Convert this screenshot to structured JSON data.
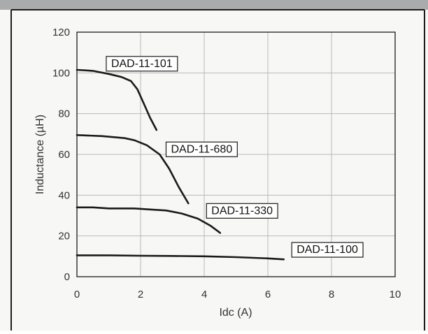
{
  "colors": {
    "background": "#f7f7f5",
    "top_band": "#a9abad",
    "frame": "#1c1c1c",
    "grid": "#b8b8b8",
    "curve": "#1a1a1a",
    "text": "#333333"
  },
  "chart_data": {
    "type": "line",
    "title": "",
    "xlabel": "Idc (A)",
    "ylabel": "Inductance (µH)",
    "xlim": [
      0,
      10
    ],
    "ylim": [
      0,
      120
    ],
    "x_ticks": [
      0,
      2,
      4,
      6,
      8,
      10
    ],
    "y_ticks": [
      0,
      20,
      40,
      60,
      80,
      100,
      120
    ],
    "x_tick_labels": [
      "0",
      "2",
      "4",
      "6",
      "8",
      "10"
    ],
    "y_tick_labels": [
      "0",
      "20",
      "40",
      "60",
      "80",
      "100",
      "120"
    ],
    "grid": true,
    "legend": "inline callout labels",
    "series": [
      {
        "name": "DAD-11-101",
        "x": [
          0,
          0.5,
          1.0,
          1.4,
          1.7,
          1.9,
          2.1,
          2.3,
          2.5
        ],
        "y": [
          101.5,
          101,
          99.5,
          98,
          96,
          92,
          85,
          78,
          72
        ]
      },
      {
        "name": "DAD-11-680",
        "x": [
          0,
          0.8,
          1.5,
          1.8,
          2.2,
          2.6,
          2.9,
          3.2,
          3.5
        ],
        "y": [
          69.5,
          69,
          68,
          67,
          64.5,
          60,
          53,
          44,
          36
        ]
      },
      {
        "name": "DAD-11-330",
        "x": [
          0,
          0.5,
          1.0,
          1.8,
          2.3,
          2.8,
          3.3,
          3.8,
          4.2,
          4.5
        ],
        "y": [
          34,
          34,
          33.5,
          33.5,
          33,
          32.5,
          31,
          28.5,
          25,
          21.5
        ]
      },
      {
        "name": "DAD-11-100",
        "x": [
          0,
          1,
          2,
          3,
          4,
          5,
          6,
          6.5
        ],
        "y": [
          10.5,
          10.5,
          10.3,
          10.2,
          10,
          9.6,
          9,
          8.5
        ]
      }
    ],
    "annotations": [
      {
        "text": "DAD-11-101",
        "series": "DAD-11-101",
        "at_x": 0.9,
        "at_y": 105
      },
      {
        "text": "DAD-11-680",
        "series": "DAD-11-680",
        "at_x": 2.78,
        "at_y": 63
      },
      {
        "text": "DAD-11-330",
        "series": "DAD-11-330",
        "at_x": 4.05,
        "at_y": 32.8
      },
      {
        "text": "DAD-11-100",
        "series": "DAD-11-100",
        "at_x": 6.73,
        "at_y": 13.7
      }
    ]
  }
}
